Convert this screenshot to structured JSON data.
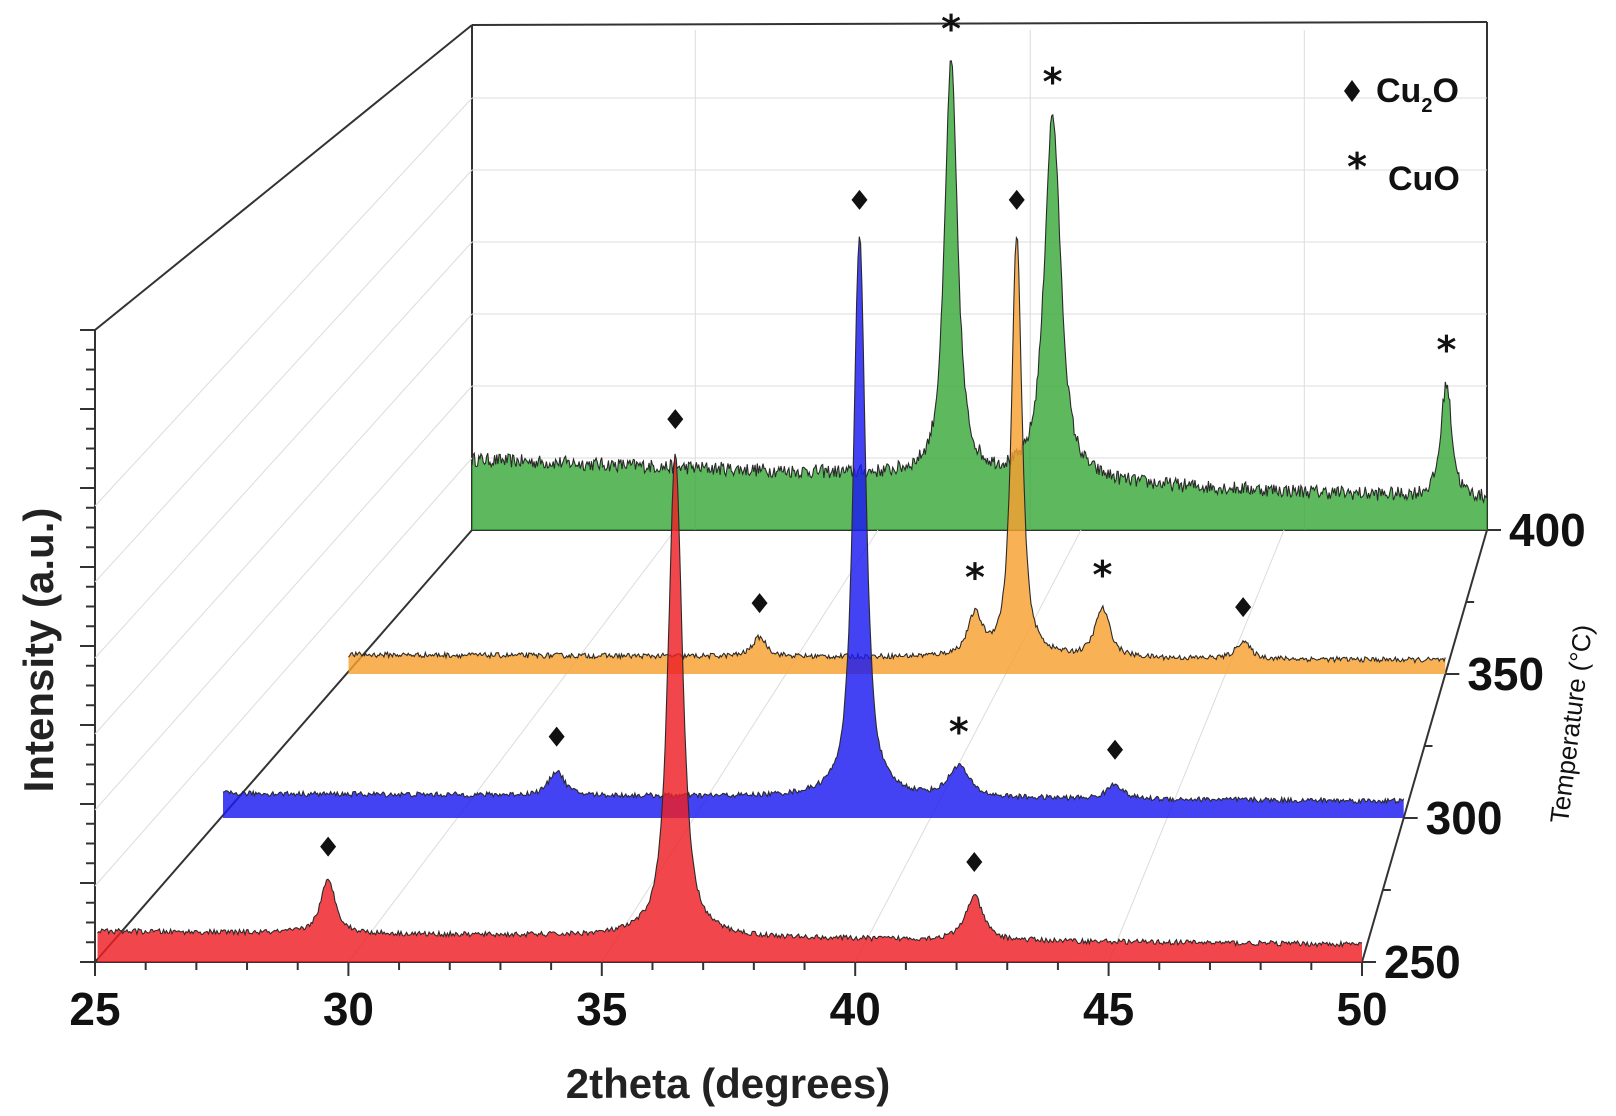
{
  "chart_data": {
    "type": "area",
    "title": "",
    "xlabel": "2theta (degrees)",
    "ylabel": "Intensity (a.u.)",
    "zlabel": "Temperature (°C)",
    "xlim": [
      25,
      50
    ],
    "xticks": [
      25,
      30,
      35,
      40,
      45,
      50
    ],
    "xtick_labels": [
      "25",
      "30",
      "35",
      "40",
      "45",
      "50"
    ],
    "zticks": [
      250,
      300,
      350,
      400
    ],
    "ztick_labels": [
      "250",
      "300",
      "350",
      "400"
    ],
    "ylim": [
      0,
      800
    ],
    "legend": {
      "position": "top-right",
      "entries": [
        {
          "symbol": "diamond",
          "label_main": "Cu",
          "label_sub": "2",
          "label_tail": "O",
          "phase": "Cu2O"
        },
        {
          "symbol": "star",
          "label_main": "CuO",
          "label_sub": "",
          "label_tail": "",
          "phase": "CuO"
        }
      ]
    },
    "series": [
      {
        "name": "250 °C",
        "temperature": 250,
        "color": "#ee1f25",
        "baseline": 35,
        "baseline_slope": -0.6,
        "noise": 3,
        "peaks": [
          {
            "two_theta": 29.6,
            "height": 60,
            "width": 0.28,
            "phase": "Cu2O"
          },
          {
            "two_theta": 36.45,
            "height": 550,
            "width": 0.26,
            "phase": "Cu2O"
          },
          {
            "two_theta": 42.35,
            "height": 50,
            "width": 0.32,
            "phase": "Cu2O"
          }
        ]
      },
      {
        "name": "300 °C",
        "temperature": 300,
        "color": "#1a1af0",
        "baseline": 28,
        "baseline_slope": -0.35,
        "noise": 3,
        "peaks": [
          {
            "two_theta": 32.1,
            "height": 28,
            "width": 0.3,
            "phase": "Cu2O"
          },
          {
            "two_theta": 38.5,
            "height": 640,
            "width": 0.24,
            "phase": "Cu2O"
          },
          {
            "two_theta": 40.6,
            "height": 35,
            "width": 0.4,
            "phase": "CuO"
          },
          {
            "two_theta": 43.9,
            "height": 17,
            "width": 0.3,
            "phase": "Cu2O"
          }
        ]
      },
      {
        "name": "350 °C",
        "temperature": 350,
        "color": "#f7a030",
        "baseline": 22,
        "baseline_slope": -0.25,
        "noise": 3,
        "peaks": [
          {
            "two_theta": 34.4,
            "height": 22,
            "width": 0.3,
            "phase": "Cu2O"
          },
          {
            "two_theta": 39.3,
            "height": 45,
            "width": 0.3,
            "phase": "CuO"
          },
          {
            "two_theta": 40.25,
            "height": 480,
            "width": 0.22,
            "phase": "Cu2O"
          },
          {
            "two_theta": 42.2,
            "height": 55,
            "width": 0.32,
            "phase": "CuO"
          },
          {
            "two_theta": 45.4,
            "height": 20,
            "width": 0.3,
            "phase": "Cu2O"
          }
        ]
      },
      {
        "name": "400 °C",
        "temperature": 400,
        "color": "#39a83a",
        "baseline": 80,
        "baseline_slope": -1.8,
        "noise": 8,
        "peaks": [
          {
            "two_theta": 36.8,
            "height": 470,
            "width": 0.3,
            "phase": "CuO"
          },
          {
            "two_theta": 39.3,
            "height": 415,
            "width": 0.38,
            "phase": "CuO"
          },
          {
            "two_theta": 49.0,
            "height": 130,
            "width": 0.25,
            "phase": "CuO"
          }
        ]
      }
    ]
  }
}
